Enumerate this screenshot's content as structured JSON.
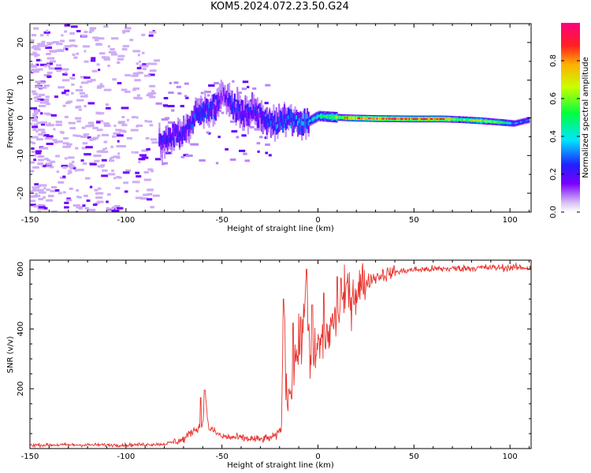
{
  "title": "KOM5.2024.072.23.50.G24",
  "chart_data": [
    {
      "type": "heatmap",
      "xlabel": "Height of straight line (km)",
      "ylabel": "Frequency (Hz)",
      "xlim": [
        -150,
        111
      ],
      "ylim": [
        -25,
        25
      ],
      "x_ticks": [
        -150,
        -100,
        -50,
        0,
        50,
        100
      ],
      "y_ticks": [
        -20,
        -10,
        0,
        10,
        20
      ],
      "colorbar": {
        "label": "Normalized spectral amplitude",
        "range": [
          0,
          1
        ],
        "ticks": [
          0.0,
          0.2,
          0.4,
          0.6,
          0.8
        ],
        "colormap": "rainbow: lavender-violet-blue-cyan-green-yellow-orange-red-magenta"
      },
      "echo_trace": [
        {
          "x": -83,
          "f": -7,
          "amp": 0.25
        },
        {
          "x": -75,
          "f": -5,
          "amp": 0.25
        },
        {
          "x": -68,
          "f": -3,
          "amp": 0.25
        },
        {
          "x": -64,
          "f": 1.5,
          "amp": 0.3
        },
        {
          "x": -55,
          "f": 2,
          "amp": 0.3
        },
        {
          "x": -50,
          "f": 6,
          "amp": 0.15
        },
        {
          "x": -45,
          "f": 4,
          "amp": 0.3
        },
        {
          "x": -40,
          "f": 1,
          "amp": 0.25
        },
        {
          "x": -33,
          "f": 2,
          "amp": 0.25
        },
        {
          "x": -25,
          "f": -1.5,
          "amp": 0.3
        },
        {
          "x": -15,
          "f": -0.5,
          "amp": 0.35
        },
        {
          "x": -7,
          "f": -1.5,
          "amp": 0.35
        },
        {
          "x": 0,
          "f": 0.5,
          "amp": 0.45
        },
        {
          "x": 5,
          "f": 0.3,
          "amp": 0.6
        },
        {
          "x": 15,
          "f": 0,
          "amp": 0.8
        },
        {
          "x": 30,
          "f": -0.2,
          "amp": 0.92
        },
        {
          "x": 50,
          "f": -0.3,
          "amp": 0.95
        },
        {
          "x": 65,
          "f": -0.3,
          "amp": 0.9
        },
        {
          "x": 75,
          "f": -0.5,
          "amp": 0.6
        },
        {
          "x": 85,
          "f": -0.8,
          "amp": 0.7
        },
        {
          "x": 95,
          "f": -1.2,
          "amp": 0.55
        },
        {
          "x": 102,
          "f": -1.5,
          "amp": 0.35
        },
        {
          "x": 110,
          "f": -0.5,
          "amp": 0.3
        }
      ]
    },
    {
      "type": "line",
      "xlabel": "Height of straight line (km)",
      "ylabel": "SNR (v/v)",
      "xlim": [
        -150,
        111
      ],
      "ylim": [
        0,
        630
      ],
      "x_ticks": [
        -150,
        -100,
        -50,
        0,
        50,
        100
      ],
      "y_ticks": [
        200,
        400,
        600
      ],
      "grid": false,
      "line_color": "#e8332d",
      "series_profile": [
        {
          "x": -150,
          "y": 12
        },
        {
          "x": -100,
          "y": 12
        },
        {
          "x": -80,
          "y": 15
        },
        {
          "x": -70,
          "y": 30
        },
        {
          "x": -65,
          "y": 60
        },
        {
          "x": -60,
          "y": 80
        },
        {
          "x": -59,
          "y": 190
        },
        {
          "x": -57,
          "y": 70
        },
        {
          "x": -50,
          "y": 40
        },
        {
          "x": -40,
          "y": 35
        },
        {
          "x": -30,
          "y": 30
        },
        {
          "x": -22,
          "y": 40
        },
        {
          "x": -19,
          "y": 70
        },
        {
          "x": -18,
          "y": 480
        },
        {
          "x": -16,
          "y": 160
        },
        {
          "x": -12,
          "y": 300
        },
        {
          "x": -8,
          "y": 350
        },
        {
          "x": -6,
          "y": 600
        },
        {
          "x": -4,
          "y": 250
        },
        {
          "x": 0,
          "y": 340
        },
        {
          "x": 5,
          "y": 380
        },
        {
          "x": 10,
          "y": 450
        },
        {
          "x": 15,
          "y": 500
        },
        {
          "x": 20,
          "y": 530
        },
        {
          "x": 25,
          "y": 555
        },
        {
          "x": 30,
          "y": 575
        },
        {
          "x": 40,
          "y": 590
        },
        {
          "x": 50,
          "y": 598
        },
        {
          "x": 70,
          "y": 602
        },
        {
          "x": 90,
          "y": 605
        },
        {
          "x": 111,
          "y": 605
        }
      ],
      "spikes": [
        {
          "x": -61,
          "y": 170
        },
        {
          "x": -59,
          "y": 195
        },
        {
          "x": -18,
          "y": 500
        },
        {
          "x": -13,
          "y": 420
        },
        {
          "x": -9,
          "y": 440
        },
        {
          "x": -6,
          "y": 600
        },
        {
          "x": -3,
          "y": 480
        },
        {
          "x": 3,
          "y": 520
        },
        {
          "x": 10,
          "y": 575
        },
        {
          "x": 12,
          "y": 570
        },
        {
          "x": 15,
          "y": 555
        }
      ]
    }
  ]
}
